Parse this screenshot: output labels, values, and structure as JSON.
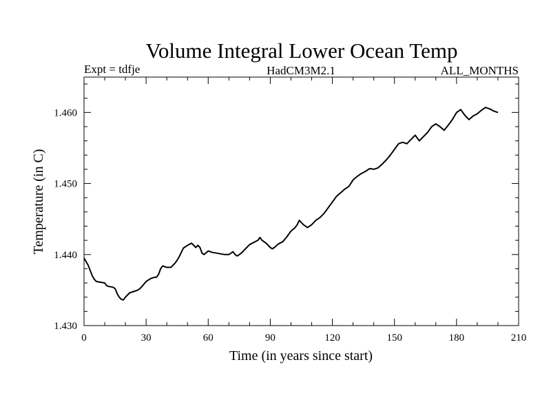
{
  "chart_data": {
    "type": "line",
    "title": "Volume Integral Lower Ocean Temp",
    "subtitle_left": "Expt = tdfje",
    "subtitle_center": "HadCM3M2.1",
    "subtitle_right": "ALL_MONTHS",
    "xlabel": "Time (in years since start)",
    "ylabel": "Temperature (in C)",
    "xlim": [
      0,
      210
    ],
    "ylim": [
      1.43,
      1.465
    ],
    "xticks": [
      0,
      30,
      60,
      90,
      120,
      150,
      180,
      210
    ],
    "xtick_labels": [
      "0",
      "30",
      "60",
      "90",
      "120",
      "150",
      "180",
      "210"
    ],
    "yticks": [
      1.43,
      1.44,
      1.45,
      1.46
    ],
    "ytick_labels": [
      "1.430",
      "1.440",
      "1.450",
      "1.460"
    ],
    "grid": false,
    "series": [
      {
        "name": "Volume Integral Lower Ocean Temp",
        "x": [
          0,
          2,
          4,
          5,
          6,
          8,
          10,
          11,
          12,
          14,
          15,
          16,
          17,
          18,
          19,
          20,
          22,
          24,
          26,
          27,
          28,
          30,
          32,
          34,
          35,
          36,
          37,
          38,
          40,
          42,
          44,
          45,
          46,
          48,
          50,
          52,
          54,
          55,
          56,
          57,
          58,
          60,
          62,
          64,
          66,
          68,
          70,
          72,
          73,
          74,
          76,
          78,
          80,
          82,
          84,
          85,
          86,
          88,
          90,
          91,
          92,
          94,
          96,
          98,
          100,
          102,
          103,
          104,
          106,
          108,
          110,
          112,
          114,
          116,
          118,
          120,
          122,
          124,
          126,
          128,
          130,
          132,
          134,
          136,
          138,
          140,
          142,
          144,
          146,
          148,
          150,
          152,
          154,
          156,
          158,
          160,
          162,
          164,
          166,
          168,
          170,
          172,
          174,
          176,
          178,
          180,
          182,
          184,
          186,
          188,
          190,
          192,
          194,
          196,
          198,
          200
        ],
        "y": [
          1.4395,
          1.4385,
          1.437,
          1.4365,
          1.4362,
          1.4361,
          1.436,
          1.4356,
          1.4355,
          1.4354,
          1.4352,
          1.4345,
          1.434,
          1.4337,
          1.4336,
          1.434,
          1.4346,
          1.4348,
          1.435,
          1.4352,
          1.4355,
          1.4362,
          1.4366,
          1.4368,
          1.4368,
          1.4372,
          1.438,
          1.4384,
          1.4382,
          1.4382,
          1.4388,
          1.4392,
          1.4397,
          1.4409,
          1.4413,
          1.4416,
          1.441,
          1.4413,
          1.441,
          1.4402,
          1.44,
          1.4405,
          1.4403,
          1.4402,
          1.4401,
          1.44,
          1.44,
          1.4404,
          1.44,
          1.4398,
          1.4402,
          1.4408,
          1.4414,
          1.4417,
          1.442,
          1.4424,
          1.442,
          1.4416,
          1.441,
          1.4408,
          1.441,
          1.4415,
          1.4418,
          1.4425,
          1.4433,
          1.4438,
          1.4442,
          1.4448,
          1.4442,
          1.4438,
          1.4442,
          1.4448,
          1.4452,
          1.4458,
          1.4466,
          1.4474,
          1.4482,
          1.4487,
          1.4492,
          1.4496,
          1.4505,
          1.451,
          1.4514,
          1.4517,
          1.4521,
          1.452,
          1.4522,
          1.4527,
          1.4533,
          1.454,
          1.4548,
          1.4556,
          1.4558,
          1.4556,
          1.4562,
          1.4568,
          1.456,
          1.4566,
          1.4572,
          1.458,
          1.4584,
          1.458,
          1.4575,
          1.4582,
          1.459,
          1.46,
          1.4604,
          1.4596,
          1.459,
          1.4595,
          1.4598,
          1.4603,
          1.4607,
          1.4605,
          1.4602,
          1.46
        ]
      }
    ]
  }
}
